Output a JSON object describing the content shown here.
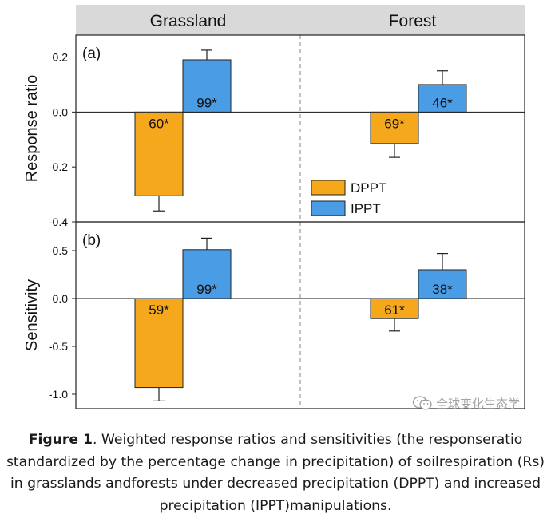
{
  "chart_data": {
    "type": "bar",
    "facets": [
      "Grassland",
      "Forest"
    ],
    "legend": {
      "placement": "center",
      "entries": [
        "DPPT",
        "IPPT"
      ]
    },
    "colors": {
      "DPPT": "#f5a81c",
      "IPPT": "#4a9ce5"
    },
    "panels": [
      {
        "label": "(a)",
        "ylabel": "Response ratio",
        "ylim": [
          -0.4,
          0.28
        ],
        "yticks": [
          {
            "value": 0.2,
            "label": "0.2"
          },
          {
            "value": 0.0,
            "label": "0.0"
          },
          {
            "value": -0.2,
            "label": "-0.2"
          },
          {
            "value": -0.4,
            "label": "-0.4"
          }
        ],
        "series": [
          {
            "name": "DPPT",
            "values": [
              -0.305,
              -0.115
            ],
            "errors": [
              0.055,
              0.05
            ],
            "labels": [
              "60*",
              "69*"
            ]
          },
          {
            "name": "IPPT",
            "values": [
              0.19,
              0.1
            ],
            "errors": [
              0.035,
              0.05
            ],
            "labels": [
              "99*",
              "46*"
            ]
          }
        ]
      },
      {
        "label": "(b)",
        "ylabel": "Sensitivity",
        "ylim": [
          -1.15,
          0.8
        ],
        "yticks": [
          {
            "value": 0.5,
            "label": "0.5"
          },
          {
            "value": 0.0,
            "label": "0.0"
          },
          {
            "value": -0.5,
            "label": "-0.5"
          },
          {
            "value": -1.0,
            "label": "-1.0"
          }
        ],
        "series": [
          {
            "name": "DPPT",
            "values": [
              -0.93,
              -0.21
            ],
            "errors": [
              0.14,
              0.13
            ],
            "labels": [
              "59*",
              "61*"
            ]
          },
          {
            "name": "IPPT",
            "values": [
              0.51,
              0.3
            ],
            "errors": [
              0.12,
              0.17
            ],
            "labels": [
              "99*",
              "38*"
            ]
          }
        ]
      }
    ]
  },
  "caption": {
    "label": "Figure 1",
    "text": ". Weighted response ratios and sensitivities (the responseratio standardized by the percentage change in precipitation) of soilrespiration (Rs) in grasslands andforests under decreased precipitation (DPPT) and increased precipitation (IPPT)manipulations."
  },
  "watermark": {
    "text": "全球变化生态学",
    "icon": "wechat-icon"
  }
}
